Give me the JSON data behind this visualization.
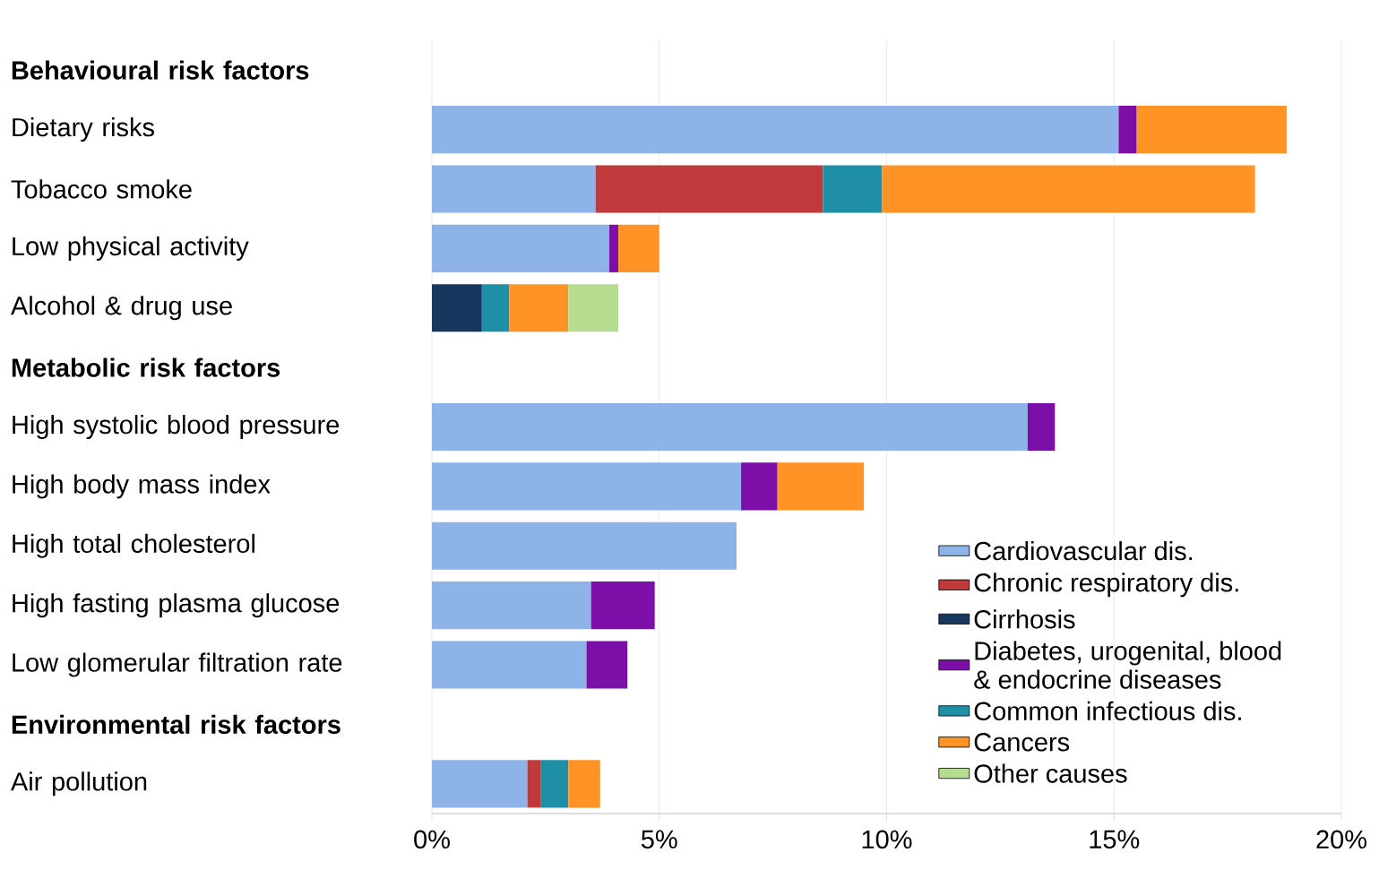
{
  "chart_data": {
    "type": "bar",
    "orientation": "horizontal",
    "stacked": true,
    "categories": [
      "Behavioural risk factors",
      "Dietary risks",
      "Tobacco smoke",
      "Low physical activity",
      "Alcohol & drug use",
      "Metabolic risk factors",
      "High systolic blood pressure",
      "High body mass index",
      "High total cholesterol",
      "High fasting plasma glucose",
      "Low glomerular filtration rate",
      "Environmental risk factors",
      "Air pollution"
    ],
    "series": [
      {
        "name": "Cardiovascular dis.",
        "color": "#8db3e8",
        "values": [
          null,
          15.1,
          3.6,
          3.9,
          null,
          null,
          13.1,
          6.8,
          6.7,
          3.5,
          3.4,
          null,
          2.1
        ]
      },
      {
        "name": "Chronic respiratory dis.",
        "color": "#c0393b",
        "values": [
          null,
          null,
          5.0,
          null,
          null,
          null,
          null,
          null,
          null,
          null,
          null,
          null,
          0.3
        ]
      },
      {
        "name": "Cirrhosis",
        "color": "#17375e",
        "values": [
          null,
          null,
          null,
          null,
          1.1,
          null,
          null,
          null,
          null,
          null,
          null,
          null,
          null
        ]
      },
      {
        "name": "Diabetes, urogenital, blood & endocrine diseases",
        "color": "#7b0fa8",
        "values": [
          null,
          0.4,
          null,
          0.2,
          null,
          null,
          0.6,
          0.8,
          null,
          1.4,
          0.9,
          null,
          null
        ]
      },
      {
        "name": "Common infectious dis.",
        "color": "#1f8fa8",
        "values": [
          null,
          null,
          1.3,
          null,
          0.6,
          null,
          null,
          null,
          null,
          null,
          null,
          null,
          0.6
        ]
      },
      {
        "name": "Cancers",
        "color": "#ff9326",
        "values": [
          null,
          3.3,
          8.2,
          0.9,
          1.3,
          null,
          null,
          1.9,
          null,
          null,
          null,
          null,
          0.7
        ]
      },
      {
        "name": "Other causes",
        "color": "#b5dc8f",
        "values": [
          null,
          null,
          null,
          null,
          1.1,
          null,
          null,
          null,
          null,
          null,
          null,
          null,
          null
        ]
      }
    ],
    "xlim": [
      0,
      20
    ],
    "xticks": [
      {
        "value": 0,
        "label": "0%"
      },
      {
        "value": 5,
        "label": "5%"
      },
      {
        "value": 10,
        "label": "10%"
      },
      {
        "value": 15,
        "label": "15%"
      },
      {
        "value": 20,
        "label": "20%"
      }
    ],
    "grid": "x",
    "legend": "bottom right"
  }
}
